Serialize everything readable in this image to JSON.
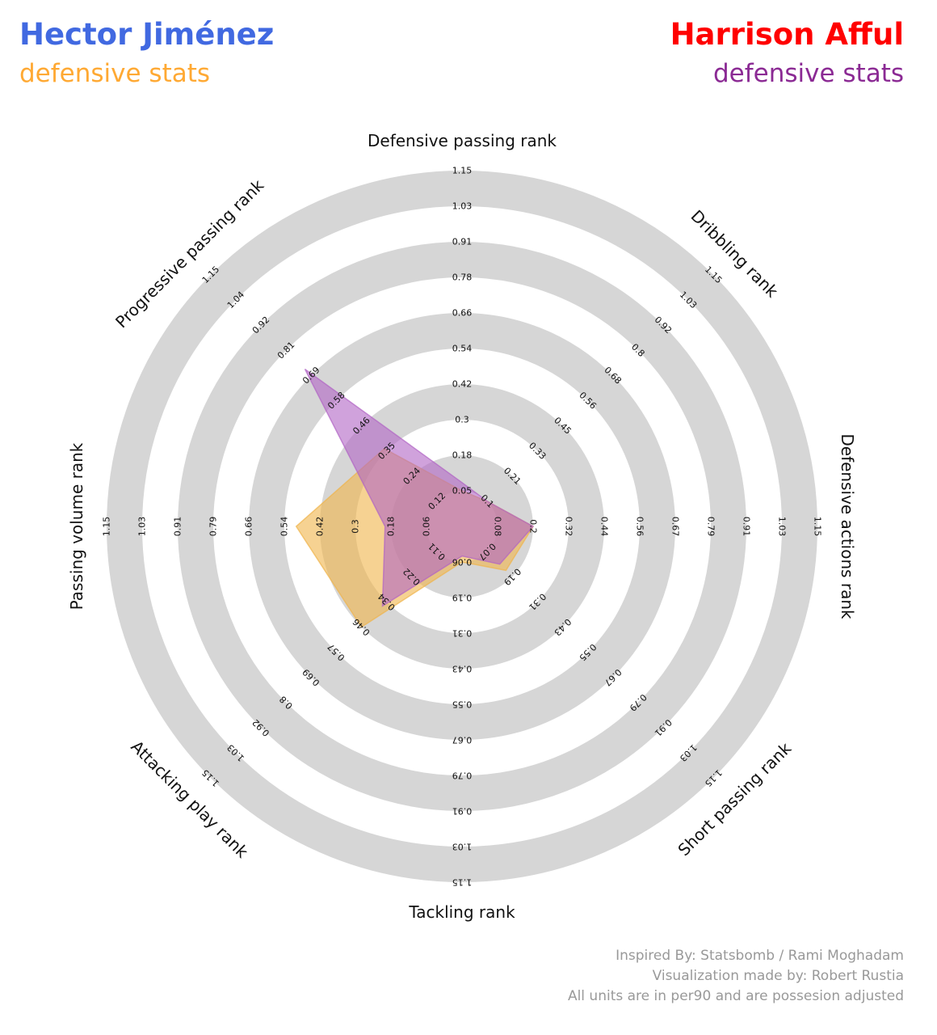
{
  "header": {
    "player1_name": "Hector Jiménez",
    "player1_subtitle": "defensive stats",
    "player2_name": "Harrison Afful",
    "player2_subtitle": "defensive stats"
  },
  "colors": {
    "player1_title": "#4169e1",
    "player1_subtitle": "#ffa933",
    "player1_fill": "#f0b44a",
    "player2_title": "#ff0000",
    "player2_subtitle": "#8b2a94",
    "player2_fill": "#b164c4",
    "ring": "#d6d6d6",
    "credits": "#999999"
  },
  "chart_data": {
    "type": "radar",
    "axes": [
      {
        "label": "Defensive passing rank",
        "ticks": [
          "0.05",
          "0.18",
          "0.3",
          "0.42",
          "0.54",
          "0.66",
          "0.78",
          "0.91",
          "1.03",
          "1.15"
        ]
      },
      {
        "label": "Dribbling rank",
        "ticks": [
          "0.1",
          "0.21",
          "0.33",
          "0.45",
          "0.56",
          "0.68",
          "0.8",
          "0.92",
          "1.03",
          "1.15"
        ]
      },
      {
        "label": "Defensive actions rank",
        "ticks": [
          "0.08",
          "0.2",
          "0.32",
          "0.44",
          "0.56",
          "0.67",
          "0.79",
          "0.91",
          "1.03",
          "1.15"
        ]
      },
      {
        "label": "Short passing rank",
        "ticks": [
          "0.07",
          "0.19",
          "0.31",
          "0.43",
          "0.55",
          "0.67",
          "0.79",
          "0.91",
          "1.03",
          "1.15"
        ]
      },
      {
        "label": "Tackling rank",
        "ticks": [
          "0.06",
          "0.19",
          "0.31",
          "0.43",
          "0.55",
          "0.67",
          "0.79",
          "0.91",
          "1.03",
          "1.15"
        ]
      },
      {
        "label": "Attacking play rank",
        "ticks": [
          "0.11",
          "0.22",
          "0.34",
          "0.46",
          "0.57",
          "0.69",
          "0.8",
          "0.92",
          "1.03",
          "1.15"
        ]
      },
      {
        "label": "Passing volume rank",
        "ticks": [
          "0.06",
          "0.18",
          "0.3",
          "0.42",
          "0.54",
          "0.66",
          "0.79",
          "0.91",
          "1.03",
          "1.15"
        ]
      },
      {
        "label": "Progressive passing rank",
        "ticks": [
          "0.12",
          "0.24",
          "0.35",
          "0.46",
          "0.58",
          "0.69",
          "0.81",
          "0.92",
          "1.04",
          "1.15"
        ]
      }
    ],
    "series": [
      {
        "name": "Hector Jiménez",
        "values": [
          0.05,
          0.1,
          0.2,
          0.16,
          0.06,
          0.46,
          0.5,
          0.36
        ]
      },
      {
        "name": "Harrison Afful",
        "values": [
          0.08,
          0.1,
          0.2,
          0.13,
          0.05,
          0.36,
          0.2,
          0.72
        ]
      }
    ]
  },
  "credits": [
    "Inspired By: Statsbomb / Rami Moghadam",
    "Visualization made by: Robert Rustia ",
    "All units are in per90 and are possesion adjusted"
  ]
}
